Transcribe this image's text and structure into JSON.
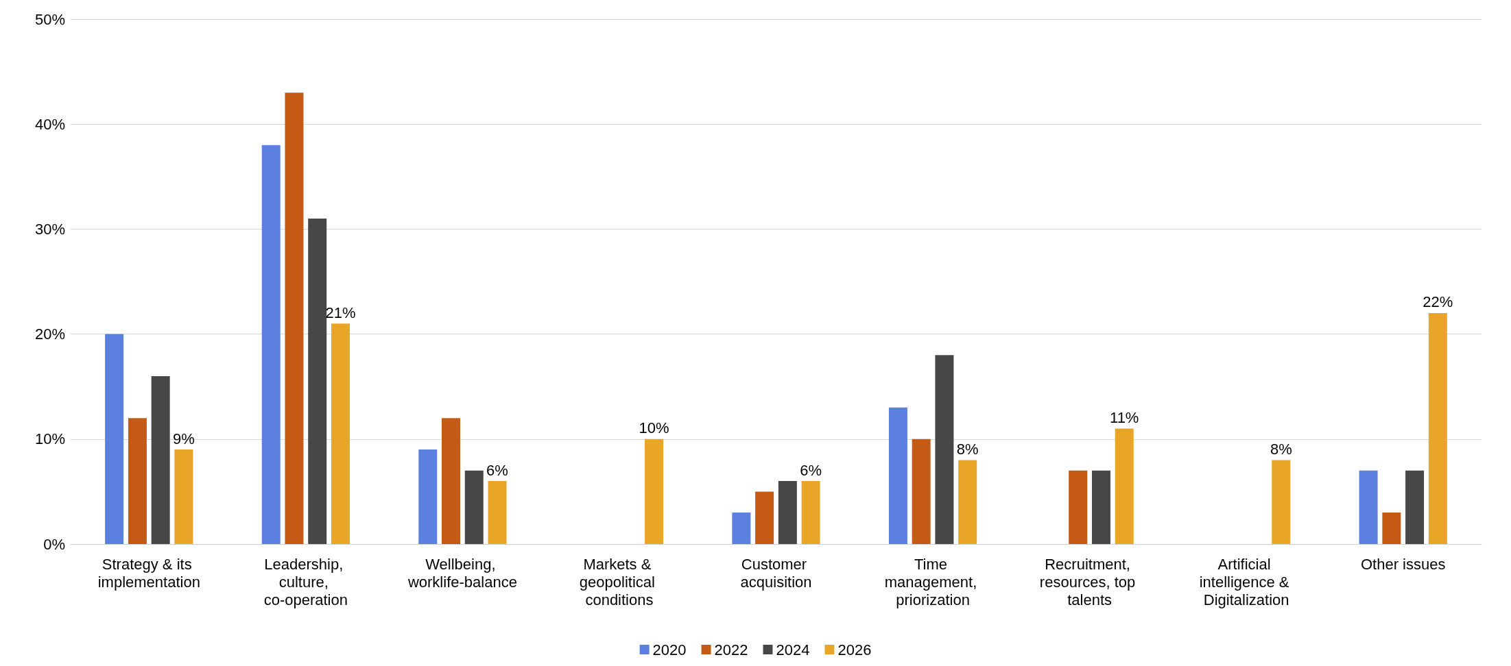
{
  "chart_data": {
    "type": "bar",
    "categories": [
      "Strategy & its implementation",
      "Leadership, culture, co-operation",
      "Wellbeing, worklife-balance",
      "Markets & geopolitical conditions",
      "Customer acquisition",
      "Time management, priorization",
      "Recruitment, resources, top talents",
      "Artificial intelligence & Digitalization",
      "Other issues"
    ],
    "series": [
      {
        "name": "2020",
        "color": "#5b80e0",
        "values": [
          20,
          38,
          9,
          null,
          3,
          13,
          null,
          null,
          7
        ]
      },
      {
        "name": "2022",
        "color": "#c55a14",
        "values": [
          12,
          43,
          12,
          null,
          5,
          10,
          7,
          null,
          3
        ]
      },
      {
        "name": "2024",
        "color": "#474747",
        "values": [
          16,
          31,
          7,
          null,
          6,
          18,
          7,
          null,
          7
        ]
      },
      {
        "name": "2026",
        "color": "#e9a528",
        "values": [
          9,
          21,
          6,
          10,
          6,
          8,
          11,
          8,
          22
        ],
        "value_labels": [
          "9%",
          "21%",
          "6%",
          "10%",
          "6%",
          "8%",
          "11%",
          "8%",
          "22%"
        ]
      }
    ],
    "ylim": [
      0,
      50
    ],
    "yticks": [
      {
        "value": 0,
        "label": "0%"
      },
      {
        "value": 10,
        "label": "10%"
      },
      {
        "value": 20,
        "label": "20%"
      },
      {
        "value": 30,
        "label": "30%"
      },
      {
        "value": 40,
        "label": "40%"
      },
      {
        "value": 50,
        "label": "50%"
      }
    ],
    "grid": "y",
    "legend": "bottom"
  }
}
